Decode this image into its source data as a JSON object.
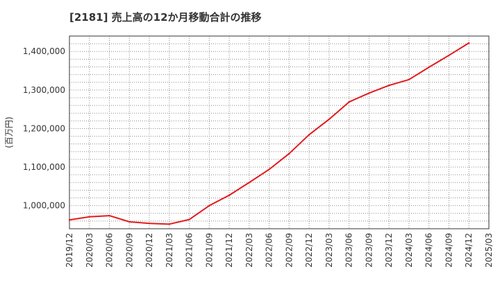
{
  "chart_data": {
    "type": "line",
    "title": "[2181]  売上高の12か月移動合計の推移",
    "xlabel": "",
    "ylabel": "(百万円)",
    "ylim": [
      940000,
      1440000
    ],
    "yticks": [
      1000000,
      1100000,
      1200000,
      1300000,
      1400000
    ],
    "ytick_labels": [
      "1,000,000",
      "1,100,000",
      "1,200,000",
      "1,300,000",
      "1,400,000"
    ],
    "categories": [
      "2019/12",
      "2020/03",
      "2020/06",
      "2020/09",
      "2020/12",
      "2021/03",
      "2021/06",
      "2021/09",
      "2021/12",
      "2022/03",
      "2022/06",
      "2022/09",
      "2022/12",
      "2023/03",
      "2023/06",
      "2023/09",
      "2023/12",
      "2024/03",
      "2024/06",
      "2024/09",
      "2024/12",
      "2025/03"
    ],
    "grid": true,
    "series": [
      {
        "name": "売上高の12か月移動合計",
        "color": "#e31a1c",
        "values": [
          963000,
          971000,
          974000,
          958000,
          954000,
          952000,
          964000,
          1000000,
          1027000,
          1060000,
          1094000,
          1135000,
          1184000,
          1224000,
          1269000,
          1292000,
          1312000,
          1327000,
          1359000,
          1390000,
          1422000,
          null
        ]
      }
    ]
  }
}
